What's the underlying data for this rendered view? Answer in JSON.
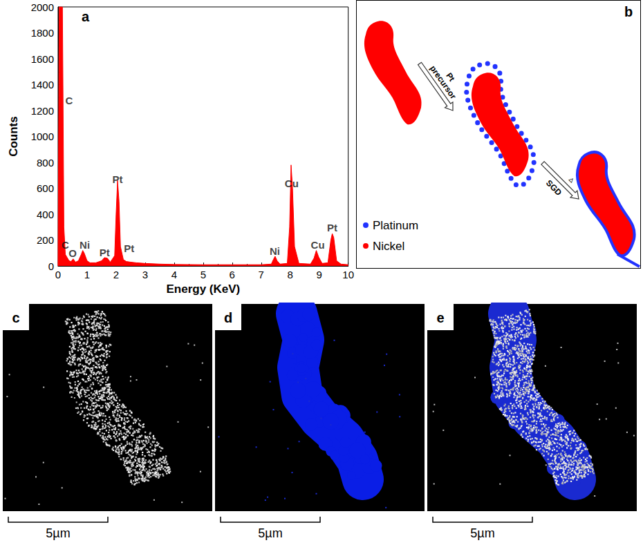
{
  "chart_data": {
    "type": "line",
    "panel": "a",
    "x_label": "Energy (KeV)",
    "y_label": "Counts",
    "color": "#ff0000",
    "x": [
      0,
      0.04,
      0.15,
      0.2,
      0.25,
      0.3,
      0.38,
      0.45,
      0.52,
      0.6,
      0.7,
      0.8,
      0.85,
      0.9,
      1.0,
      1.1,
      1.3,
      1.5,
      1.6,
      1.7,
      1.8,
      1.95,
      2.0,
      2.05,
      2.1,
      2.15,
      2.25,
      2.35,
      2.5,
      2.7,
      3.0,
      3.5,
      4,
      5,
      6,
      7,
      7.35,
      7.42,
      7.48,
      7.55,
      7.65,
      7.9,
      7.98,
      8.03,
      8.08,
      8.15,
      8.3,
      8.7,
      8.82,
      8.9,
      8.98,
      9.1,
      9.3,
      9.4,
      9.45,
      9.5,
      9.6,
      9.75,
      10
    ],
    "values": [
      0,
      2000,
      2000,
      300,
      90,
      70,
      40,
      35,
      55,
      30,
      40,
      90,
      120,
      100,
      40,
      25,
      25,
      40,
      65,
      60,
      30,
      80,
      400,
      660,
      500,
      150,
      50,
      35,
      30,
      25,
      20,
      15,
      12,
      10,
      10,
      10,
      15,
      50,
      75,
      40,
      15,
      20,
      300,
      780,
      600,
      150,
      20,
      15,
      60,
      120,
      70,
      20,
      25,
      200,
      250,
      220,
      40,
      15,
      10
    ],
    "xlim": [
      0,
      10
    ],
    "xticks": [
      0,
      1,
      2,
      3,
      4,
      5,
      6,
      7,
      8,
      9,
      10
    ],
    "ylim": [
      0,
      2000
    ],
    "yticks": [
      0,
      200,
      400,
      600,
      800,
      1000,
      1200,
      1400,
      1600,
      1800,
      2000
    ],
    "annotations": [
      {
        "text": "C",
        "x": 0.38,
        "y": 1280
      },
      {
        "text": "C",
        "x": 0.25,
        "y": 165
      },
      {
        "text": "O",
        "x": 0.5,
        "y": 100
      },
      {
        "text": "Ni",
        "x": 0.92,
        "y": 165
      },
      {
        "text": "Pt",
        "x": 1.6,
        "y": 105
      },
      {
        "text": "Pt",
        "x": 2.05,
        "y": 670
      },
      {
        "text": "Pt",
        "x": 2.45,
        "y": 135
      },
      {
        "text": "Ni",
        "x": 7.47,
        "y": 115
      },
      {
        "text": "Cu",
        "x": 8.05,
        "y": 640
      },
      {
        "text": "Cu",
        "x": 8.95,
        "y": 165
      },
      {
        "text": "Pt",
        "x": 9.45,
        "y": 295
      }
    ]
  },
  "diagram": {
    "panel": "b",
    "steps": [
      {
        "label": [
          "Pt",
          "precursor"
        ]
      },
      {
        "label": "SGD",
        "symbol": "▵"
      }
    ],
    "legend": [
      {
        "text": "Platinum",
        "color": "#2233ff"
      },
      {
        "text": "Nickel",
        "color": "#ff0000"
      }
    ]
  },
  "maps": {
    "panels": [
      {
        "panel": "c"
      },
      {
        "panel": "d"
      },
      {
        "panel": "e"
      }
    ],
    "scale_bar": "5µm"
  }
}
